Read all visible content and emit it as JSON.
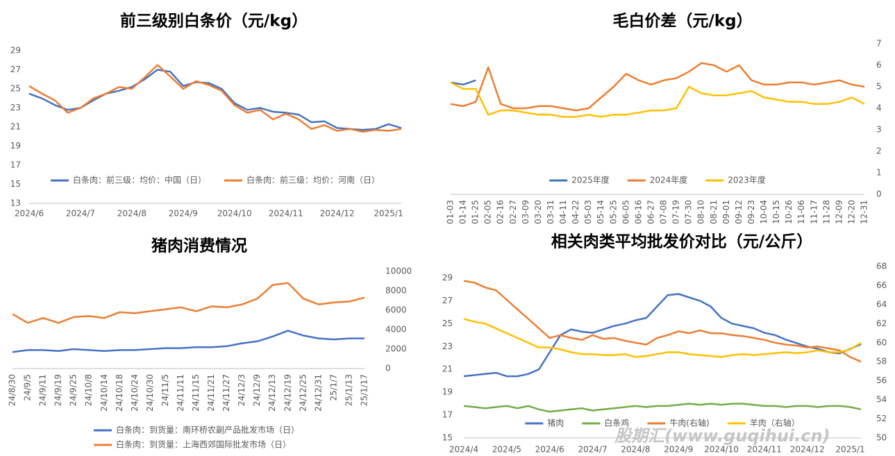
{
  "chart_data": [
    {
      "type": "line",
      "title": "前三级别白条价（元/kg）",
      "categories": [
        "2024/6",
        null,
        null,
        null,
        "2024/7",
        null,
        null,
        null,
        "2024/8",
        null,
        null,
        null,
        "2024/9",
        null,
        null,
        null,
        "2024/10",
        null,
        null,
        null,
        "2024/11",
        null,
        null,
        null,
        "2024/12",
        null,
        null,
        null,
        "2025/1",
        null
      ],
      "series": [
        {
          "name": "白条肉：前三级：均价：中国（日）",
          "color": "#4472c4",
          "values": [
            24.5,
            24.0,
            23.3,
            22.8,
            23.0,
            23.8,
            24.5,
            24.8,
            25.2,
            26.0,
            27.0,
            26.8,
            25.3,
            25.7,
            25.6,
            25.0,
            23.5,
            22.8,
            23.0,
            22.6,
            22.5,
            22.3,
            21.5,
            21.6,
            20.9,
            20.8,
            20.7,
            20.8,
            21.3,
            20.9
          ]
        },
        {
          "name": "白条肉：前三级：均价：河南（日）",
          "color": "#ed7d31",
          "values": [
            25.3,
            24.5,
            23.8,
            22.5,
            23.0,
            24.0,
            24.5,
            25.2,
            25.0,
            26.2,
            27.5,
            26.3,
            25.0,
            25.8,
            25.4,
            24.8,
            23.3,
            22.5,
            22.8,
            21.8,
            22.4,
            21.8,
            20.8,
            21.2,
            20.6,
            20.8,
            20.5,
            20.7,
            20.6,
            20.8
          ]
        }
      ],
      "ylim": [
        13,
        29
      ],
      "yticks": [
        13,
        15,
        17,
        19,
        21,
        23,
        25,
        27,
        29
      ]
    },
    {
      "type": "line",
      "title": "毛白价差（元/kg）",
      "categories": [
        "01-03",
        "01-14",
        "01-25",
        "02-05",
        "02-16",
        "02-27",
        "03-09",
        "03-20",
        "03-31",
        "04-11",
        "04-22",
        "05-03",
        "05-14",
        "05-25",
        "06-05",
        "06-16",
        "06-27",
        "07-08",
        "07-19",
        "07-30",
        "08-10",
        "08-21",
        "09-01",
        "09-12",
        "09-23",
        "10-04",
        "10-15",
        "10-26",
        "11-06",
        "11-17",
        "11-28",
        "12-09",
        "12-20",
        "12-31"
      ],
      "series": [
        {
          "name": "2025年度",
          "color": "#4472c4",
          "values": [
            5.2,
            5.1,
            5.3,
            null,
            null,
            null,
            null,
            null,
            null,
            null,
            null,
            null,
            null,
            null,
            null,
            null,
            null,
            null,
            null,
            null,
            null,
            null,
            null,
            null,
            null,
            null,
            null,
            null,
            null,
            null,
            null,
            null,
            null,
            null
          ]
        },
        {
          "name": "2024年度",
          "color": "#ed7d31",
          "values": [
            4.2,
            4.1,
            4.3,
            5.9,
            4.2,
            4.0,
            4.0,
            4.1,
            4.1,
            4.0,
            3.9,
            4.0,
            4.5,
            5.0,
            5.6,
            5.3,
            5.1,
            5.3,
            5.4,
            5.7,
            6.1,
            6.0,
            5.7,
            6.0,
            5.3,
            5.1,
            5.1,
            5.2,
            5.2,
            5.1,
            5.2,
            5.3,
            5.1,
            5.0
          ]
        },
        {
          "name": "2023年度",
          "color": "#ffc000",
          "values": [
            5.2,
            4.9,
            4.9,
            3.7,
            3.9,
            3.9,
            3.8,
            3.7,
            3.7,
            3.6,
            3.6,
            3.7,
            3.6,
            3.7,
            3.7,
            3.8,
            3.9,
            3.9,
            4.0,
            5.0,
            4.7,
            4.6,
            4.6,
            4.7,
            4.8,
            4.5,
            4.4,
            4.3,
            4.3,
            4.2,
            4.2,
            4.3,
            4.5,
            4.2
          ]
        }
      ],
      "ylim": [
        0,
        7
      ],
      "yticks": [
        0,
        1,
        2,
        3,
        4,
        5,
        6,
        7
      ]
    },
    {
      "type": "line",
      "title": "猪肉消费情况",
      "categories": [
        "24/8/30",
        "24/9/5",
        "24/9/11",
        "24/9/19",
        "24/9/25",
        "24/10/8",
        "24/10/14",
        "24/10/18",
        "24/10/24",
        "24/10/30",
        "24/11/5",
        "24/11/11",
        "24/11/15",
        "24/11/21",
        "24/11/27",
        "24/12/3",
        "24/12/9",
        "24/12/13",
        "24/12/19",
        "24/12/25",
        "24/12/31",
        "25/1/7",
        "25/1/13",
        "25/1/17"
      ],
      "series": [
        {
          "name": "白条肉：到货量：南环桥农副产品批发市场（日）",
          "color": "#4472c4",
          "values": [
            1700,
            1900,
            1900,
            1800,
            2000,
            1900,
            1800,
            1900,
            1900,
            2000,
            2100,
            2100,
            2200,
            2200,
            2300,
            2600,
            2800,
            3300,
            3900,
            3400,
            3100,
            3000,
            3100,
            3100
          ]
        },
        {
          "name": "白条肉：到货量：上海西郊国际批发市场（日）",
          "color": "#ed7d31",
          "values": [
            5600,
            4700,
            5200,
            4700,
            5300,
            5400,
            5200,
            5800,
            5700,
            5900,
            6100,
            6300,
            5900,
            6400,
            6300,
            6600,
            7200,
            8600,
            8800,
            7200,
            6600,
            6800,
            6900,
            7300
          ]
        }
      ],
      "ylim": [
        0,
        10000
      ],
      "yticks": [
        0,
        2000,
        4000,
        6000,
        8000,
        10000
      ]
    },
    {
      "type": "line",
      "title": "相关肉类平均批发价对比（元/公斤）",
      "categories": [
        "2024/4",
        null,
        null,
        null,
        "2024/5",
        null,
        null,
        null,
        "2024/6",
        null,
        null,
        null,
        "2024/7",
        null,
        null,
        null,
        "2024/8",
        null,
        null,
        null,
        "2024/9",
        null,
        null,
        null,
        "2024/10",
        null,
        null,
        null,
        "2024/11",
        null,
        null,
        null,
        "2024/12",
        null,
        null,
        null,
        "2025/1",
        null
      ],
      "series": [
        {
          "name": "猪肉",
          "color": "#4472c4",
          "values": [
            20.4,
            20.5,
            20.6,
            20.7,
            20.4,
            20.4,
            20.6,
            21.0,
            22.5,
            24.0,
            24.5,
            24.3,
            24.2,
            24.5,
            24.8,
            25.0,
            25.3,
            25.5,
            26.5,
            27.5,
            27.6,
            27.3,
            27.0,
            26.5,
            25.5,
            25.0,
            24.8,
            24.6,
            24.2,
            24.0,
            23.6,
            23.3,
            23.0,
            22.8,
            22.5,
            22.4,
            22.8,
            23.2
          ]
        },
        {
          "name": "白条鸡",
          "color": "#70ad47",
          "values": [
            17.8,
            17.7,
            17.6,
            17.7,
            17.8,
            17.6,
            17.8,
            17.5,
            17.3,
            17.4,
            17.5,
            17.6,
            17.4,
            17.5,
            17.6,
            17.7,
            17.8,
            17.7,
            17.8,
            17.8,
            17.9,
            18.0,
            17.9,
            18.0,
            17.9,
            18.0,
            18.0,
            17.9,
            17.8,
            17.8,
            17.7,
            17.8,
            17.8,
            17.7,
            17.8,
            17.8,
            17.7,
            17.5
          ]
        },
        {
          "name": "牛肉(右轴)",
          "color": "#ed7d31",
          "axis": "y2",
          "values": [
            66.5,
            66.3,
            65.8,
            65.5,
            64.5,
            63.5,
            62.5,
            61.5,
            60.5,
            60.8,
            60.5,
            60.3,
            60.8,
            60.4,
            60.5,
            60.2,
            60.0,
            59.8,
            60.5,
            60.8,
            61.2,
            61.0,
            61.3,
            61.0,
            61.0,
            60.8,
            60.7,
            60.5,
            60.3,
            60.0,
            59.8,
            59.7,
            59.5,
            59.6,
            59.4,
            59.2,
            58.5,
            58.0
          ]
        },
        {
          "name": "羊肉（右轴）",
          "color": "#ffc000",
          "axis": "y2",
          "values": [
            62.5,
            62.2,
            62.0,
            61.5,
            61.0,
            60.5,
            60.0,
            59.5,
            59.5,
            59.3,
            59.0,
            58.8,
            58.8,
            58.7,
            58.7,
            58.8,
            58.5,
            58.6,
            58.8,
            59.0,
            59.0,
            58.8,
            58.7,
            58.6,
            58.5,
            58.7,
            58.8,
            58.7,
            58.8,
            58.9,
            59.0,
            58.9,
            59.0,
            59.2,
            59.0,
            59.0,
            59.3,
            60.0
          ]
        }
      ],
      "ylim": [
        15,
        30
      ],
      "yticks": [
        15,
        17,
        19,
        21,
        23,
        25,
        27,
        29
      ],
      "y2lim": [
        50,
        68
      ],
      "y2ticks": [
        50,
        52,
        54,
        56,
        58,
        60,
        62,
        64,
        66,
        68
      ]
    }
  ],
  "watermark": "股期汇(www.guqihui.cn)"
}
